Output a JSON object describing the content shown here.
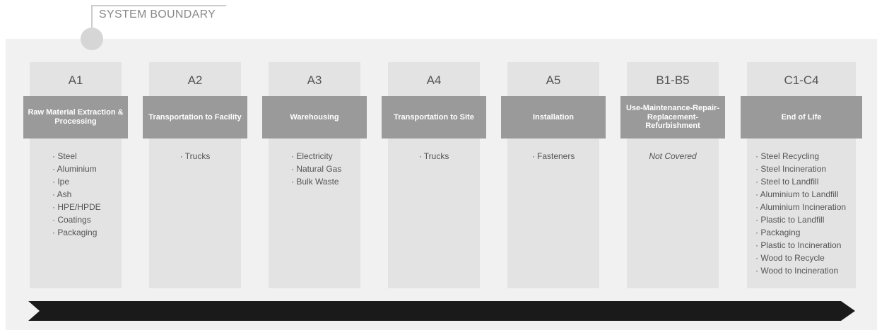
{
  "header": {
    "title": "SYSTEM BOUNDARY"
  },
  "columns": [
    {
      "code": "A1",
      "title": "Raw Material Extraction & Processing",
      "items": [
        "· Steel",
        "· Aluminium",
        "· Ipe",
        "· Ash",
        "· HPE/HPDE",
        "· Coatings",
        "· Packaging"
      ]
    },
    {
      "code": "A2",
      "title": "Transportation to Facility",
      "items": [
        "· Trucks"
      ]
    },
    {
      "code": "A3",
      "title": "Warehousing",
      "items": [
        "· Electricity",
        "· Natural Gas",
        "· Bulk Waste"
      ]
    },
    {
      "code": "A4",
      "title": "Transportation to Site",
      "items": [
        "· Trucks"
      ]
    },
    {
      "code": "A5",
      "title": "Installation",
      "items": [
        "· Fasteners"
      ]
    },
    {
      "code": "B1-B5",
      "title": "Use-Maintenance-Repair-Replacement-Refurbishment",
      "items": [
        "Not Covered"
      ]
    },
    {
      "code": "C1-C4",
      "title": "End of Life",
      "items": [
        "· Steel Recycling",
        "· Steel Incineration",
        "· Steel to Landfill",
        "· Aluminium to Landfill",
        "· Aluminium Incineration",
        "· Plastic to Landfill",
        "· Packaging",
        "· Plastic to Incineration",
        "· Wood to Recycle",
        "· Wood to Incineration"
      ]
    }
  ]
}
